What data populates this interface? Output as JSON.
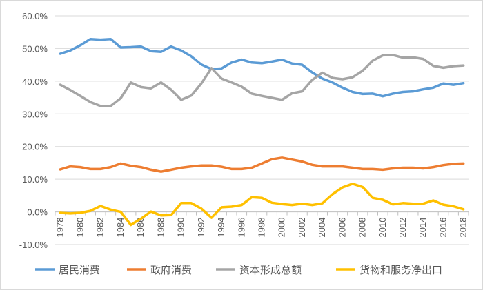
{
  "chart_data": {
    "type": "line",
    "title": "",
    "xlabel": "",
    "ylabel": "",
    "ylim": [
      -10,
      60
    ],
    "y_ticks": [
      "-10.0%",
      "0.0%",
      "10.0%",
      "20.0%",
      "30.0%",
      "40.0%",
      "50.0%",
      "60.0%"
    ],
    "y_tick_values": [
      -10,
      0,
      10,
      20,
      30,
      40,
      50,
      60
    ],
    "x": [
      1978,
      1979,
      1980,
      1981,
      1982,
      1983,
      1984,
      1985,
      1986,
      1987,
      1988,
      1989,
      1990,
      1991,
      1992,
      1993,
      1994,
      1995,
      1996,
      1997,
      1998,
      1999,
      2000,
      2001,
      2002,
      2003,
      2004,
      2005,
      2006,
      2007,
      2008,
      2009,
      2010,
      2011,
      2012,
      2013,
      2014,
      2015,
      2016,
      2017,
      2018
    ],
    "x_tick_labels": [
      "1978",
      "1980",
      "1982",
      "1984",
      "1986",
      "1988",
      "1990",
      "1992",
      "1994",
      "1996",
      "1998",
      "2000",
      "2002",
      "2004",
      "2006",
      "2008",
      "2010",
      "2012",
      "2014",
      "2016",
      "2018"
    ],
    "grid": "horizontal",
    "legend": "bottom",
    "series": [
      {
        "name": "居民消费",
        "color": "#5b9bd5",
        "values": [
          48.4,
          49.4,
          51.0,
          52.9,
          52.7,
          52.9,
          50.3,
          50.4,
          50.6,
          49.2,
          49.0,
          50.6,
          49.4,
          47.6,
          45.1,
          43.7,
          43.9,
          45.7,
          46.6,
          45.7,
          45.5,
          46.0,
          46.6,
          45.4,
          45.0,
          42.7,
          40.8,
          39.6,
          38.0,
          36.7,
          36.1,
          36.2,
          35.4,
          36.2,
          36.7,
          36.9,
          37.5,
          38.0,
          39.3,
          38.9,
          39.4
        ]
      },
      {
        "name": "政府消费",
        "color": "#ed7d31",
        "values": [
          13.0,
          13.9,
          13.7,
          13.1,
          13.1,
          13.7,
          14.8,
          14.1,
          13.7,
          12.9,
          12.3,
          12.9,
          13.5,
          13.9,
          14.2,
          14.2,
          13.8,
          13.1,
          13.1,
          13.5,
          14.8,
          16.1,
          16.6,
          16.0,
          15.4,
          14.4,
          13.9,
          13.9,
          13.9,
          13.5,
          13.1,
          13.1,
          12.9,
          13.3,
          13.5,
          13.5,
          13.3,
          13.7,
          14.3,
          14.7,
          14.8
        ]
      },
      {
        "name": "资本形成总额",
        "color": "#a5a5a5",
        "values": [
          38.9,
          37.3,
          35.5,
          33.6,
          32.4,
          32.4,
          34.8,
          39.6,
          38.2,
          37.8,
          39.6,
          37.4,
          34.3,
          35.6,
          39.3,
          44.0,
          40.8,
          39.6,
          38.3,
          36.2,
          35.5,
          34.9,
          34.3,
          36.3,
          36.9,
          40.4,
          42.6,
          41.0,
          40.6,
          41.2,
          43.2,
          46.3,
          47.9,
          48.0,
          47.2,
          47.3,
          46.8,
          44.7,
          44.1,
          44.6,
          44.8
        ]
      },
      {
        "name": "货物和服务净出口",
        "color": "#ffc000",
        "values": [
          -0.3,
          -0.5,
          -0.3,
          0.3,
          1.8,
          0.7,
          0.0,
          -4.0,
          -2.1,
          0.1,
          -1.1,
          -1.0,
          2.7,
          2.7,
          1.0,
          -1.8,
          1.4,
          1.6,
          2.1,
          4.5,
          4.3,
          2.8,
          2.4,
          2.1,
          2.5,
          2.1,
          2.6,
          5.4,
          7.5,
          8.6,
          7.6,
          4.3,
          3.7,
          2.3,
          2.7,
          2.5,
          2.5,
          3.5,
          2.2,
          1.7,
          0.8
        ]
      }
    ]
  }
}
